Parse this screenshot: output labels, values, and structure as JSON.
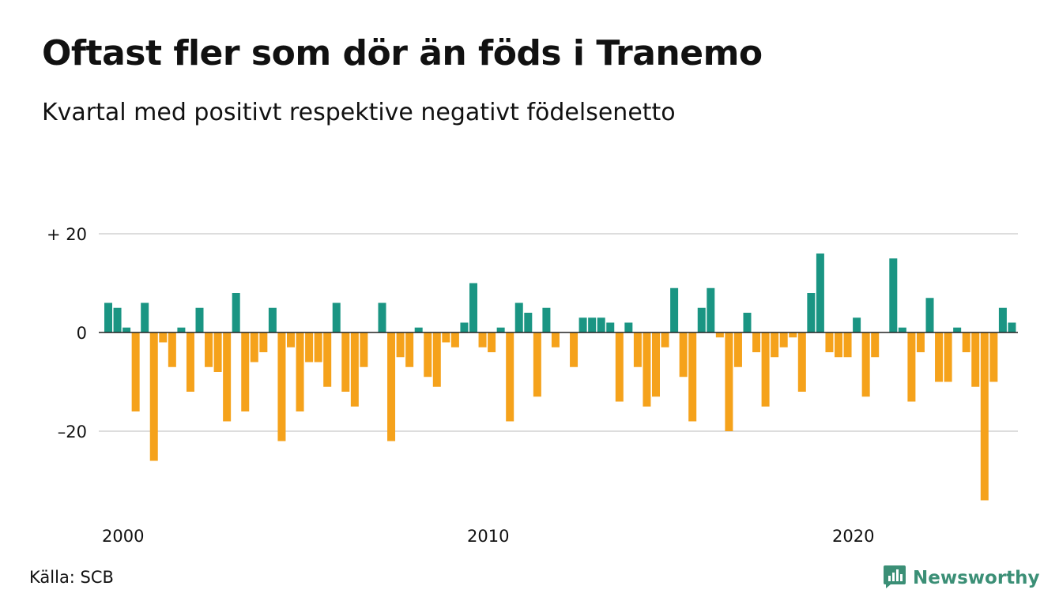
{
  "title": "Oftast fler som dör än föds i Tranemo",
  "subtitle": "Kvartal med positivt respektive negativt födelsenetto",
  "source": "Källa: SCB",
  "brand": {
    "name": "Newsworthy",
    "icon": "newsworthy-logo-icon",
    "color": "#3b8f76"
  },
  "colors": {
    "positive": "#1a9583",
    "negative": "#f5a21b",
    "grid": "#dddddd",
    "zero": "#222222"
  },
  "chart_data": {
    "type": "bar",
    "title": "Oftast fler som dör än föds i Tranemo",
    "subtitle": "Kvartal med positivt respektive negativt födelsenetto",
    "xlabel": "",
    "ylabel": "",
    "x_start": "2000 Q1",
    "x_ticks": [
      {
        "label": "2000",
        "index": 0
      },
      {
        "label": "2010",
        "index": 40
      },
      {
        "label": "2020",
        "index": 80
      }
    ],
    "y_ticks": [
      {
        "label": "+ 20",
        "value": 20
      },
      {
        "label": "0",
        "value": 0
      },
      {
        "label": "–20",
        "value": -20
      }
    ],
    "ylim": [
      -36,
      22
    ],
    "values": [
      6,
      5,
      1,
      -16,
      6,
      -26,
      -2,
      -7,
      1,
      -12,
      5,
      -7,
      -8,
      -18,
      8,
      -16,
      -6,
      -4,
      5,
      -22,
      -3,
      -16,
      -6,
      -6,
      -11,
      6,
      -12,
      -15,
      -7,
      0,
      6,
      -22,
      -5,
      -7,
      1,
      -9,
      -11,
      -2,
      -3,
      2,
      10,
      -3,
      -4,
      1,
      -18,
      6,
      4,
      -13,
      5,
      -3,
      0,
      -7,
      3,
      3,
      3,
      2,
      -14,
      2,
      -7,
      -15,
      -13,
      -3,
      9,
      -9,
      -18,
      5,
      9,
      -1,
      -20,
      -7,
      4,
      -4,
      -15,
      -5,
      -3,
      -1,
      -12,
      8,
      16,
      -4,
      -5,
      -5,
      3,
      -13,
      -5,
      0,
      15,
      1,
      -14,
      -4,
      7,
      -10,
      -10,
      1,
      -4,
      -11,
      -34,
      -10,
      5,
      2
    ],
    "grid": true,
    "legend": "none"
  }
}
